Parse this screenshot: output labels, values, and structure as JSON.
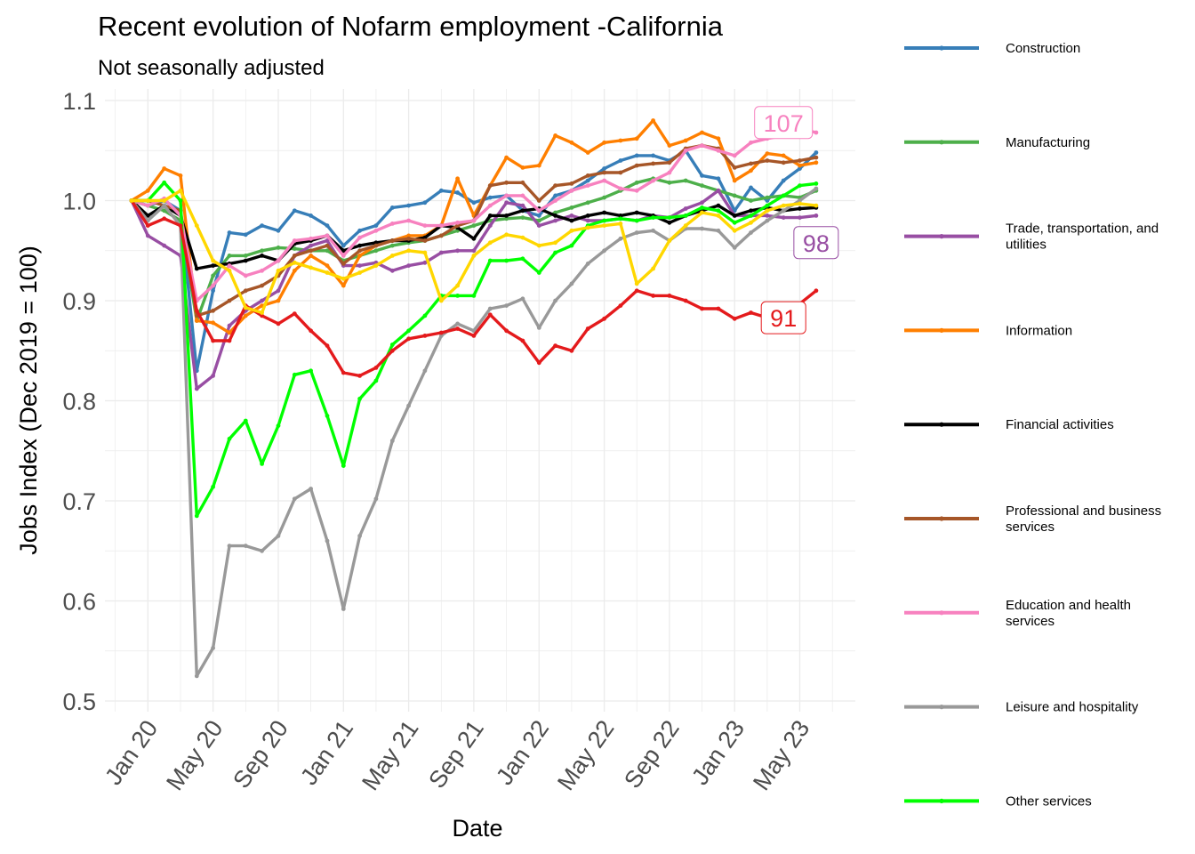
{
  "chart_data": {
    "type": "line",
    "title": "Recent evolution of Nofarm employment -California",
    "subtitle": "Not seasonally adjusted",
    "xlabel": "Date",
    "ylabel": "Jobs Index (Dec 2019 = 100)",
    "ylim": [
      0.5,
      1.1
    ],
    "y_ticks": [
      "0.5",
      "0.6",
      "0.7",
      "0.8",
      "0.9",
      "1.0",
      "1.1"
    ],
    "x_ticks": [
      "Jan 20",
      "May 20",
      "Sep 20",
      "Jan 21",
      "May 21",
      "Sep 21",
      "Jan 22",
      "May 22",
      "Sep 22",
      "Jan 23",
      "May 23"
    ],
    "x": [
      "Dec 19",
      "Jan 20",
      "Feb 20",
      "Mar 20",
      "Apr 20",
      "May 20",
      "Jun 20",
      "Jul 20",
      "Aug 20",
      "Sep 20",
      "Oct 20",
      "Nov 20",
      "Dec 20",
      "Jan 21",
      "Feb 21",
      "Mar 21",
      "Apr 21",
      "May 21",
      "Jun 21",
      "Jul 21",
      "Aug 21",
      "Sep 21",
      "Oct 21",
      "Nov 21",
      "Dec 21",
      "Jan 22",
      "Feb 22",
      "Mar 22",
      "Apr 22",
      "May 22",
      "Jun 22",
      "Jul 22",
      "Aug 22",
      "Sep 22",
      "Oct 22",
      "Nov 22",
      "Dec 22",
      "Jan 23",
      "Feb 23",
      "Mar 23",
      "Apr 23",
      "May 23",
      "Jun 23"
    ],
    "grid": true,
    "legend_position": "right",
    "series": [
      {
        "name": "Construction",
        "color": "#377EB8",
        "values": [
          1.0,
          0.995,
          1.0,
          0.99,
          0.83,
          0.91,
          0.968,
          0.966,
          0.975,
          0.97,
          0.99,
          0.985,
          0.975,
          0.955,
          0.97,
          0.975,
          0.993,
          0.995,
          0.998,
          1.01,
          1.008,
          0.998,
          1.003,
          1.005,
          0.99,
          0.985,
          1.005,
          1.01,
          1.02,
          1.032,
          1.04,
          1.045,
          1.045,
          1.04,
          1.05,
          1.025,
          1.022,
          0.99,
          1.013,
          1.0,
          1.02,
          1.032,
          1.048
        ]
      },
      {
        "name": "Manufacturing",
        "color": "#4DAF4A",
        "values": [
          1.0,
          0.995,
          0.99,
          0.98,
          0.88,
          0.925,
          0.945,
          0.945,
          0.95,
          0.953,
          0.952,
          0.95,
          0.95,
          0.94,
          0.945,
          0.95,
          0.955,
          0.958,
          0.96,
          0.965,
          0.97,
          0.975,
          0.98,
          0.982,
          0.983,
          0.98,
          0.988,
          0.993,
          0.998,
          1.003,
          1.01,
          1.018,
          1.022,
          1.018,
          1.02,
          1.015,
          1.01,
          1.005,
          1.0,
          1.003,
          1.005,
          1.003,
          1.01
        ]
      },
      {
        "name": "Trade, transportation, and utilities",
        "color": "#984EA3",
        "values": [
          1.0,
          0.965,
          0.955,
          0.945,
          0.812,
          0.825,
          0.875,
          0.89,
          0.9,
          0.91,
          0.945,
          0.955,
          0.96,
          0.935,
          0.935,
          0.938,
          0.93,
          0.935,
          0.938,
          0.948,
          0.95,
          0.95,
          0.975,
          0.998,
          0.995,
          0.975,
          0.98,
          0.985,
          0.98,
          0.98,
          0.982,
          0.98,
          0.985,
          0.983,
          0.992,
          0.998,
          1.01,
          0.985,
          0.985,
          0.985,
          0.983,
          0.983,
          0.985
        ]
      },
      {
        "name": "Information",
        "color": "#FF7F00",
        "values": [
          1.0,
          1.01,
          1.032,
          1.025,
          0.88,
          0.878,
          0.868,
          0.885,
          0.895,
          0.9,
          0.93,
          0.945,
          0.935,
          0.915,
          0.945,
          0.955,
          0.96,
          0.965,
          0.965,
          0.975,
          1.022,
          0.985,
          1.015,
          1.043,
          1.033,
          1.035,
          1.065,
          1.058,
          1.048,
          1.058,
          1.06,
          1.062,
          1.08,
          1.055,
          1.06,
          1.068,
          1.062,
          1.02,
          1.03,
          1.047,
          1.045,
          1.035,
          1.038
        ]
      },
      {
        "name": "Financial activities",
        "color": "#000000",
        "values": [
          1.0,
          0.985,
          0.995,
          0.985,
          0.932,
          0.935,
          0.937,
          0.94,
          0.945,
          0.94,
          0.957,
          0.96,
          0.965,
          0.95,
          0.955,
          0.958,
          0.96,
          0.96,
          0.963,
          0.975,
          0.973,
          0.962,
          0.985,
          0.985,
          0.99,
          0.992,
          0.985,
          0.98,
          0.985,
          0.988,
          0.985,
          0.988,
          0.985,
          0.978,
          0.985,
          0.99,
          0.995,
          0.985,
          0.99,
          0.993,
          0.99,
          0.992,
          0.993
        ]
      },
      {
        "name": "Professional and business services",
        "color": "#A65628",
        "values": [
          1.0,
          1.0,
          0.995,
          0.99,
          0.885,
          0.89,
          0.9,
          0.91,
          0.915,
          0.925,
          0.945,
          0.95,
          0.955,
          0.937,
          0.95,
          0.955,
          0.96,
          0.962,
          0.96,
          0.965,
          0.975,
          0.98,
          1.015,
          1.018,
          1.018,
          1.0,
          1.015,
          1.017,
          1.025,
          1.028,
          1.028,
          1.035,
          1.037,
          1.038,
          1.052,
          1.055,
          1.052,
          1.033,
          1.037,
          1.04,
          1.038,
          1.04,
          1.043
        ]
      },
      {
        "name": "Education and health services",
        "color": "#F781BF",
        "values": [
          1.0,
          0.995,
          1.002,
          0.985,
          0.9,
          0.915,
          0.935,
          0.925,
          0.93,
          0.94,
          0.96,
          0.962,
          0.965,
          0.945,
          0.963,
          0.97,
          0.977,
          0.98,
          0.975,
          0.975,
          0.978,
          0.98,
          0.995,
          1.005,
          1.005,
          0.99,
          1.0,
          1.01,
          1.015,
          1.02,
          1.012,
          1.01,
          1.02,
          1.028,
          1.05,
          1.055,
          1.05,
          1.045,
          1.058,
          1.062,
          1.065,
          1.072,
          1.068
        ]
      },
      {
        "name": "Leisure and hospitality",
        "color": "#999999",
        "values": [
          1.0,
          0.98,
          0.995,
          0.975,
          0.525,
          0.553,
          0.655,
          0.655,
          0.65,
          0.665,
          0.702,
          0.712,
          0.66,
          0.592,
          0.665,
          0.702,
          0.76,
          0.795,
          0.83,
          0.865,
          0.877,
          0.87,
          0.892,
          0.895,
          0.902,
          0.873,
          0.9,
          0.917,
          0.937,
          0.95,
          0.962,
          0.968,
          0.97,
          0.96,
          0.972,
          0.972,
          0.97,
          0.953,
          0.968,
          0.98,
          0.99,
          1.0,
          1.012
        ]
      },
      {
        "name": "Other services",
        "color": "#00FF00",
        "values": [
          1.0,
          1.0,
          1.018,
          1.0,
          0.685,
          0.714,
          0.762,
          0.78,
          0.737,
          0.775,
          0.826,
          0.83,
          0.785,
          0.735,
          0.802,
          0.82,
          0.856,
          0.87,
          0.885,
          0.905,
          0.905,
          0.905,
          0.94,
          0.94,
          0.942,
          0.928,
          0.948,
          0.955,
          0.975,
          0.98,
          0.982,
          0.98,
          0.983,
          0.983,
          0.985,
          0.993,
          0.99,
          0.978,
          0.985,
          0.995,
          1.005,
          1.015,
          1.017
        ]
      },
      {
        "color": "#E41A1C",
        "values": [
          1.0,
          0.975,
          0.982,
          0.975,
          0.89,
          0.86,
          0.86,
          0.895,
          0.885,
          0.877,
          0.887,
          0.87,
          0.855,
          0.828,
          0.825,
          0.833,
          0.85,
          0.862,
          0.865,
          0.868,
          0.872,
          0.865,
          0.886,
          0.87,
          0.86,
          0.838,
          0.855,
          0.85,
          0.872,
          0.882,
          0.895,
          0.91,
          0.905,
          0.905,
          0.9,
          0.892,
          0.892,
          0.882,
          0.888,
          0.883,
          0.888,
          0.897,
          0.91
        ]
      },
      {
        "color": "#FFD700",
        "values": [
          1.0,
          1.0,
          1.0,
          1.01,
          0.975,
          0.94,
          0.93,
          0.893,
          0.888,
          0.93,
          0.938,
          0.933,
          0.928,
          0.922,
          0.928,
          0.935,
          0.945,
          0.95,
          0.948,
          0.9,
          0.915,
          0.945,
          0.958,
          0.966,
          0.963,
          0.955,
          0.958,
          0.97,
          0.973,
          0.975,
          0.977,
          0.917,
          0.932,
          0.96,
          0.975,
          0.988,
          0.985,
          0.97,
          0.978,
          0.99,
          0.995,
          0.997,
          0.995
        ]
      }
    ],
    "end_labels": [
      {
        "text": "107",
        "color": "#F781BF",
        "x_index": 40,
        "y": 1.078
      },
      {
        "text": "98",
        "color": "#984EA3",
        "x_index": 42,
        "y": 0.958
      },
      {
        "text": "91",
        "color": "#E41A1C",
        "x_index": 40,
        "y": 0.883
      }
    ]
  }
}
